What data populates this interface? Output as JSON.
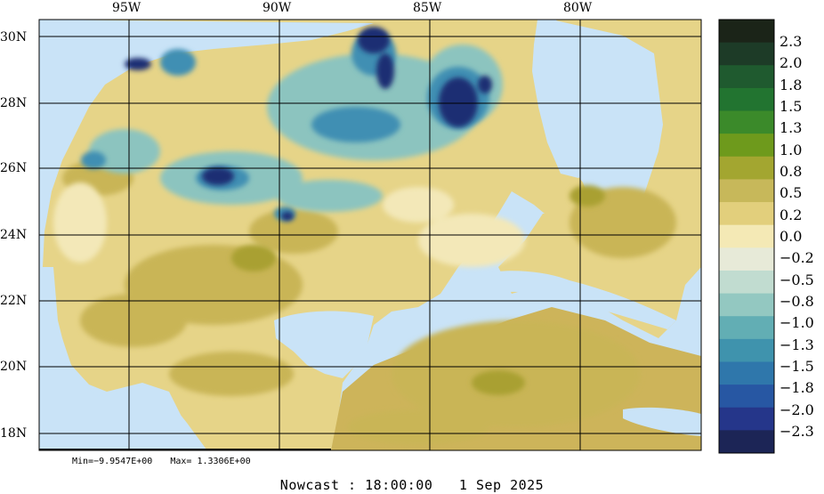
{
  "map": {
    "lon_labels": [
      "95W",
      "90W",
      "85W",
      "80W"
    ],
    "lat_labels": [
      "30N",
      "28N",
      "26N",
      "24N",
      "22N",
      "20N",
      "18N"
    ]
  },
  "colorbar": {
    "labels": [
      "2.3",
      "2.0",
      "1.8",
      "1.5",
      "1.3",
      "1.0",
      "0.8",
      "0.5",
      "0.2",
      "0.0",
      "−0.2",
      "−0.5",
      "−0.8",
      "−1.0",
      "−1.3",
      "−1.5",
      "−1.8",
      "−2.0",
      "−2.3"
    ],
    "colors": [
      "#1b2418",
      "#1d3b27",
      "#1f5a2f",
      "#227430",
      "#3b8a2a",
      "#6e9a1c",
      "#a3a630",
      "#c7b85a",
      "#e2cf7c",
      "#f4e9b5",
      "#e7ead8",
      "#c1dcd0",
      "#93c8c1",
      "#62aeb4",
      "#3f93ad",
      "#2f77ab",
      "#2757a3",
      "#25368a",
      "#1c2556"
    ]
  },
  "stats": {
    "min": "Min=−9.9547E+00",
    "max": "Max= 1.3306E+00"
  },
  "caption": {
    "label": "Nowcast : 18:00:00",
    "date": "1 Sep 2025"
  }
}
